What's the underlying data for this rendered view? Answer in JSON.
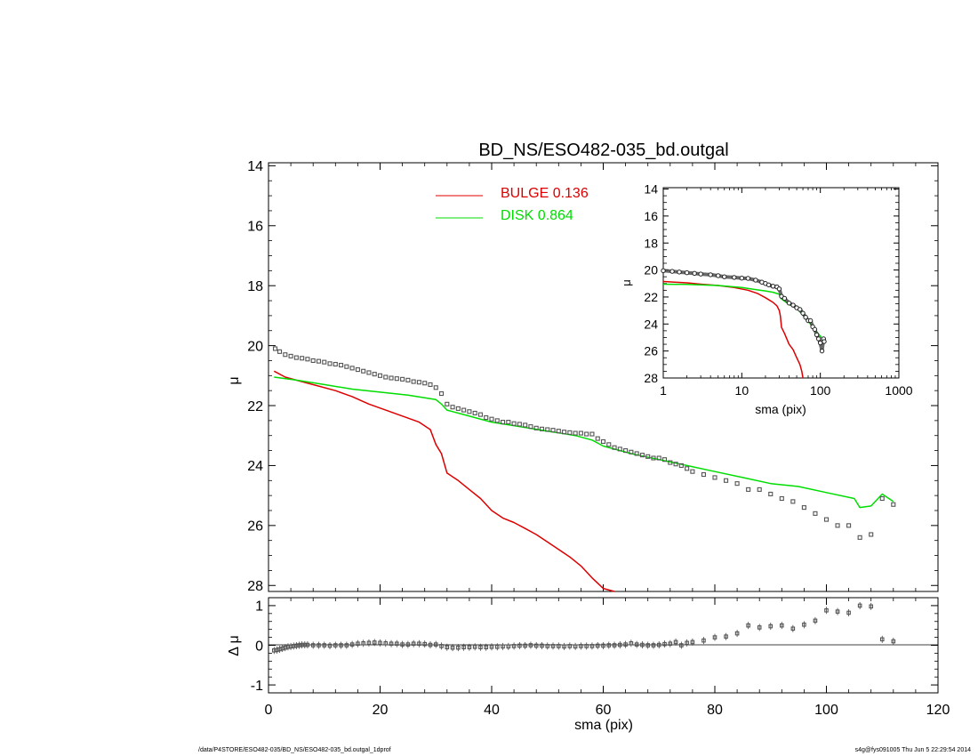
{
  "chart_data": {
    "title": "BD_NS/ESO482-035_bd.outgal",
    "footer_left": "/data/P4STORE/ESO482-035/BD_NS/ESO482-035_bd.outgal_1dprof",
    "footer_right": "s4g@fys091005  Thu Jun  5 22:29:54 2014",
    "colors": {
      "bulge": "#dd0000",
      "disk": "#00dd00",
      "data": "#555555",
      "axes": "#000000"
    },
    "panels": [
      {
        "id": "main",
        "type": "scatter",
        "xlabel": "",
        "ylabel": "μ",
        "xlim": [
          0,
          120
        ],
        "ylim": [
          28.2,
          13.9
        ],
        "yticks": [
          "14",
          "16",
          "18",
          "20",
          "22",
          "24",
          "26",
          "28"
        ],
        "legend": {
          "placement": "top-center",
          "entries": [
            {
              "label": "BULGE  0.136",
              "color": "#dd0000"
            },
            {
              "label": "DISK  0.864",
              "color": "#00dd00"
            }
          ]
        },
        "series": [
          {
            "role": "data",
            "x": [
              1.2,
              2,
              3,
              4,
              5,
              6,
              7,
              8,
              9,
              10,
              11,
              12,
              13,
              14,
              15,
              16,
              17,
              18,
              19,
              20,
              21,
              22,
              23,
              24,
              25,
              26,
              27,
              28,
              29,
              30,
              31,
              32,
              33,
              34,
              35,
              36,
              37,
              38,
              39,
              40,
              41,
              42,
              43,
              44,
              45,
              46,
              47,
              48,
              49,
              50,
              51,
              52,
              53,
              54,
              55,
              56,
              57,
              58,
              59,
              60,
              61,
              62,
              63,
              64,
              65,
              66,
              67,
              68,
              69,
              70,
              71,
              72,
              73,
              74,
              75,
              76,
              78,
              80,
              82,
              84,
              86,
              88,
              90,
              92,
              94,
              96,
              98,
              100,
              102,
              104,
              106,
              108,
              110,
              112
            ],
            "y": [
              20.1,
              20.2,
              20.3,
              20.35,
              20.4,
              20.42,
              20.45,
              20.5,
              20.52,
              20.55,
              20.6,
              20.62,
              20.65,
              20.7,
              20.75,
              20.8,
              20.85,
              20.9,
              20.95,
              21.0,
              21.05,
              21.08,
              21.1,
              21.12,
              21.15,
              21.2,
              21.22,
              21.25,
              21.3,
              21.4,
              21.6,
              21.95,
              22.05,
              22.1,
              22.15,
              22.2,
              22.25,
              22.3,
              22.4,
              22.45,
              22.5,
              22.55,
              22.55,
              22.6,
              22.62,
              22.65,
              22.7,
              22.75,
              22.78,
              22.8,
              22.82,
              22.85,
              22.88,
              22.9,
              22.92,
              22.92,
              22.95,
              22.95,
              23.1,
              23.2,
              23.3,
              23.4,
              23.45,
              23.5,
              23.55,
              23.6,
              23.65,
              23.7,
              23.75,
              23.75,
              23.8,
              23.9,
              23.95,
              24.0,
              24.1,
              24.2,
              24.3,
              24.4,
              24.5,
              24.6,
              24.8,
              24.8,
              24.95,
              25.1,
              25.2,
              25.4,
              25.6,
              25.8,
              26.0,
              26.0,
              26.4,
              26.3,
              25.1,
              25.3
            ]
          },
          {
            "role": "bulge",
            "x": [
              1,
              3,
              6,
              9,
              12,
              15,
              18,
              21,
              24,
              27,
              29,
              30,
              31,
              32,
              34,
              36,
              38,
              40,
              42,
              44,
              46,
              48,
              50,
              52,
              54,
              56,
              58,
              60,
              62
            ],
            "y": [
              20.85,
              21.05,
              21.2,
              21.35,
              21.5,
              21.7,
              21.95,
              22.15,
              22.35,
              22.55,
              22.8,
              23.3,
              23.6,
              24.25,
              24.5,
              24.8,
              25.1,
              25.5,
              25.75,
              25.9,
              26.1,
              26.3,
              26.55,
              26.8,
              27.05,
              27.35,
              27.75,
              28.1,
              28.3
            ]
          },
          {
            "role": "disk",
            "x": [
              1,
              5,
              10,
              15,
              20,
              25,
              30,
              31,
              32,
              35,
              40,
              45,
              50,
              55,
              58,
              60,
              65,
              70,
              75,
              80,
              85,
              90,
              95,
              100,
              105,
              106,
              108,
              110,
              112
            ],
            "y": [
              21.05,
              21.15,
              21.3,
              21.45,
              21.55,
              21.65,
              21.8,
              21.95,
              22.15,
              22.3,
              22.55,
              22.7,
              22.85,
              23.0,
              23.15,
              23.35,
              23.6,
              23.8,
              24.0,
              24.2,
              24.4,
              24.6,
              24.7,
              24.9,
              25.1,
              25.4,
              25.35,
              24.95,
              25.2
            ]
          }
        ]
      },
      {
        "id": "residual",
        "type": "scatter",
        "xlabel": "sma (pix)",
        "ylabel": "Δ μ",
        "xlim": [
          0,
          120
        ],
        "ylim": [
          -1.2,
          1.2
        ],
        "xticks": [
          "0",
          "20",
          "40",
          "60",
          "80",
          "100",
          "120"
        ],
        "yticks": [
          "-1",
          "0",
          "1"
        ],
        "series": [
          {
            "role": "data",
            "x": [
              1,
              1.5,
              2,
              2.5,
              3,
              3.5,
              4,
              4.5,
              5,
              5.5,
              6,
              6.5,
              7,
              8,
              9,
              10,
              11,
              12,
              13,
              14,
              15,
              16,
              17,
              18,
              19,
              20,
              21,
              22,
              23,
              24,
              25,
              26,
              27,
              28,
              29,
              30,
              31,
              32,
              33,
              34,
              35,
              36,
              37,
              38,
              39,
              40,
              41,
              42,
              43,
              44,
              45,
              46,
              47,
              48,
              49,
              50,
              51,
              52,
              53,
              54,
              55,
              56,
              57,
              58,
              59,
              60,
              61,
              62,
              63,
              64,
              65,
              66,
              67,
              68,
              69,
              70,
              71,
              72,
              73,
              74,
              75,
              76,
              78,
              80,
              82,
              84,
              86,
              88,
              90,
              92,
              94,
              96,
              98,
              100,
              102,
              104,
              106,
              108,
              110,
              112
            ],
            "y": [
              -0.13,
              -0.12,
              -0.1,
              -0.08,
              -0.06,
              -0.04,
              -0.03,
              -0.02,
              -0.01,
              0.0,
              0.01,
              0.01,
              0.01,
              0.0,
              0.0,
              0.0,
              -0.01,
              0.0,
              0.0,
              0.0,
              0.02,
              0.04,
              0.05,
              0.06,
              0.07,
              0.06,
              0.05,
              0.04,
              0.04,
              0.02,
              0.02,
              0.04,
              0.04,
              0.03,
              0.01,
              0.02,
              -0.02,
              -0.05,
              -0.06,
              -0.06,
              -0.05,
              -0.05,
              -0.04,
              -0.05,
              -0.05,
              -0.04,
              -0.04,
              -0.03,
              -0.03,
              -0.02,
              -0.01,
              -0.01,
              0.0,
              -0.01,
              -0.01,
              -0.02,
              -0.02,
              -0.02,
              -0.03,
              -0.02,
              -0.03,
              -0.02,
              -0.02,
              -0.02,
              -0.01,
              -0.01,
              0.0,
              0.0,
              0.01,
              0.02,
              0.05,
              0.02,
              0.01,
              0.0,
              0.0,
              0.01,
              0.03,
              0.04,
              0.08,
              0.0,
              0.06,
              0.08,
              0.12,
              0.2,
              0.22,
              0.3,
              0.5,
              0.45,
              0.48,
              0.5,
              0.42,
              0.52,
              0.62,
              0.88,
              0.85,
              0.82,
              1.0,
              0.98,
              0.15,
              0.1
            ]
          }
        ]
      },
      {
        "id": "inset",
        "type": "line",
        "xscale": "log",
        "xlabel": "sma (pix)",
        "ylabel": "μ",
        "xlim": [
          1,
          1000
        ],
        "ylim": [
          28.0,
          13.9
        ],
        "xticks": [
          "1",
          "10",
          "100",
          "1000"
        ],
        "yticks": [
          "14",
          "16",
          "18",
          "20",
          "22",
          "24",
          "26",
          "28"
        ],
        "series": [
          {
            "role": "data",
            "x": [
              1.0,
              1.3,
              1.6,
              2.0,
              2.5,
              3,
              4,
              5,
              6,
              8,
              10,
              12,
              15,
              18,
              20,
              22,
              25,
              28,
              30,
              32,
              35,
              40,
              45,
              50,
              55,
              60,
              65,
              70,
              75,
              80,
              85,
              90,
              95,
              100,
              105,
              110,
              112
            ],
            "y": [
              20.05,
              20.1,
              20.15,
              20.2,
              20.25,
              20.3,
              20.35,
              20.42,
              20.5,
              20.55,
              20.6,
              20.62,
              20.75,
              20.9,
              21.0,
              21.1,
              21.2,
              21.25,
              21.4,
              21.95,
              22.1,
              22.45,
              22.6,
              22.8,
              22.92,
              23.2,
              23.5,
              23.75,
              23.75,
              24.2,
              24.4,
              24.8,
              25.1,
              25.4,
              26.0,
              25.1,
              25.3
            ]
          },
          {
            "role": "bulge",
            "x": [
              1,
              2,
              3,
              5,
              8,
              12,
              16,
              20,
              25,
              28,
              30,
              31,
              32,
              35,
              40,
              45,
              50,
              55,
              58,
              60
            ],
            "y": [
              20.85,
              20.95,
              21.05,
              21.15,
              21.3,
              21.5,
              21.75,
              22.05,
              22.4,
              22.65,
              23.0,
              23.4,
              24.25,
              24.7,
              25.5,
              25.9,
              26.5,
              27.0,
              27.5,
              28.0
            ]
          },
          {
            "role": "disk",
            "x": [
              1,
              2,
              5,
              10,
              15,
              20,
              25,
              30,
              32,
              40,
              50,
              60,
              80,
              100,
              112
            ],
            "y": [
              21.05,
              21.07,
              21.15,
              21.3,
              21.45,
              21.55,
              21.65,
              21.8,
              22.15,
              22.55,
              22.85,
              23.35,
              24.2,
              24.9,
              25.2
            ]
          }
        ]
      }
    ]
  }
}
